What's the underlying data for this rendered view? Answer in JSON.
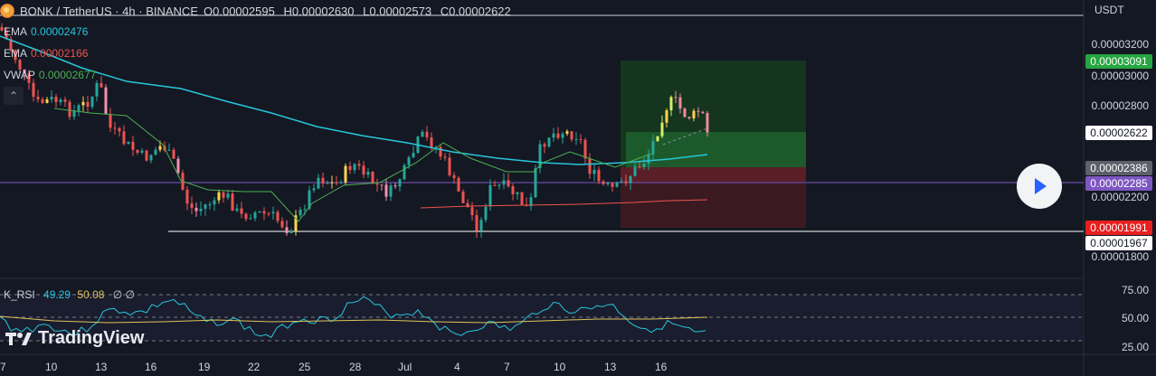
{
  "header": {
    "symbol": "BONK / TetherUS · 4h · BINANCE",
    "ohlc": [
      {
        "k": "O",
        "v": "0.00002595"
      },
      {
        "k": "H",
        "v": "0.00002630"
      },
      {
        "k": "L",
        "v": "0.00002573"
      },
      {
        "k": "C",
        "v": "0.00002622"
      }
    ]
  },
  "legend": {
    "ema1": {
      "name": "EMA",
      "value": "0.00002476",
      "color": "#26c6da"
    },
    "ema2": {
      "name": "EMA",
      "value": "0.00002166",
      "color": "#ef5350"
    },
    "vwap": {
      "name": "VWAP",
      "value": "0.00002677",
      "color": "#4caf50"
    }
  },
  "axis": {
    "currency": "USDT",
    "ticks": [
      "0.00003200",
      "0.00003000",
      "0.00002800",
      "0.00002200",
      "0.00001800"
    ],
    "tags": [
      {
        "text": "0.00003091",
        "bg": "#26a641",
        "fg": "#ffffff"
      },
      {
        "text": "0.00002622",
        "bg": "#ffffff",
        "fg": "#131722"
      },
      {
        "text": "0.00002386",
        "bg": "#5d606b",
        "fg": "#ffffff"
      },
      {
        "text": "0.00002285",
        "bg": "#7e57c2",
        "fg": "#ffffff"
      },
      {
        "text": "0.00001991",
        "bg": "#e91e1e",
        "fg": "#ffffff"
      },
      {
        "text": "0.00001967",
        "bg": "#ffffff",
        "fg": "#131722"
      }
    ]
  },
  "rsi": {
    "name": "K_RSI",
    "v1": "49.29",
    "v2": "50.08",
    "extra": "∅ ∅",
    "ticks": [
      "75.00",
      "50.00",
      "25.00"
    ]
  },
  "xaxis": [
    "7",
    "10",
    "13",
    "16",
    "19",
    "22",
    "25",
    "28",
    "Jul",
    "4",
    "7",
    "10",
    "13",
    "16"
  ],
  "brand": "TradingView",
  "chart_data": {
    "type": "candlestick",
    "price_range": [
      1.8e-05,
      3.2e-05
    ],
    "current_close": 2.622e-05,
    "position": {
      "entry": 2.386e-05,
      "take_profit": 3.091e-05,
      "stop_loss": 1.991e-05
    },
    "horizontal_lines": [
      2.285e-05,
      1.967e-05
    ],
    "rsi_levels": [
      75,
      50,
      25
    ]
  }
}
